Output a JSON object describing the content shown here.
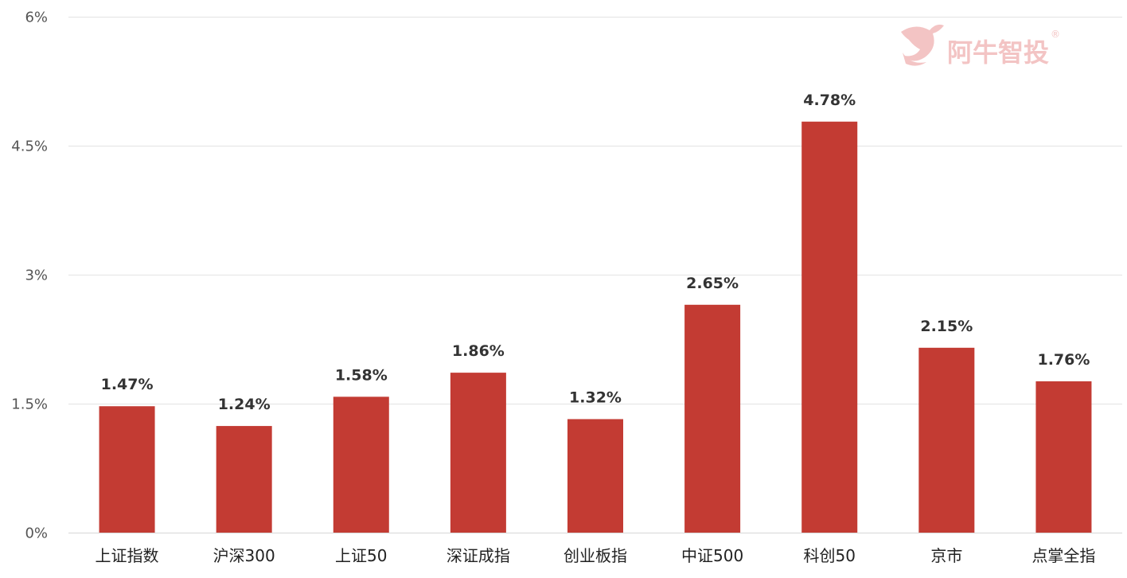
{
  "chart_data": {
    "type": "bar",
    "categories": [
      "上证指数",
      "沪深300",
      "上证50",
      "深证成指",
      "创业板指",
      "中证500",
      "科创50",
      "京市",
      "点掌全指"
    ],
    "values": [
      1.47,
      1.24,
      1.58,
      1.86,
      1.32,
      2.65,
      4.78,
      2.15,
      1.76
    ],
    "data_labels": [
      "1.47%",
      "1.24%",
      "1.58%",
      "1.86%",
      "1.32%",
      "2.65%",
      "4.78%",
      "2.15%",
      "1.76%"
    ],
    "ylim": [
      0,
      6
    ],
    "yticks": [
      0,
      1.5,
      3,
      4.5,
      6
    ],
    "ytick_labels": [
      "0%",
      "1.5%",
      "3%",
      "4.5%",
      "6%"
    ],
    "grid": true,
    "bar_color": "#c33b33"
  },
  "watermark": {
    "text": "阿牛智投",
    "mark": "®",
    "logo_icon": "bull-logo-icon"
  }
}
